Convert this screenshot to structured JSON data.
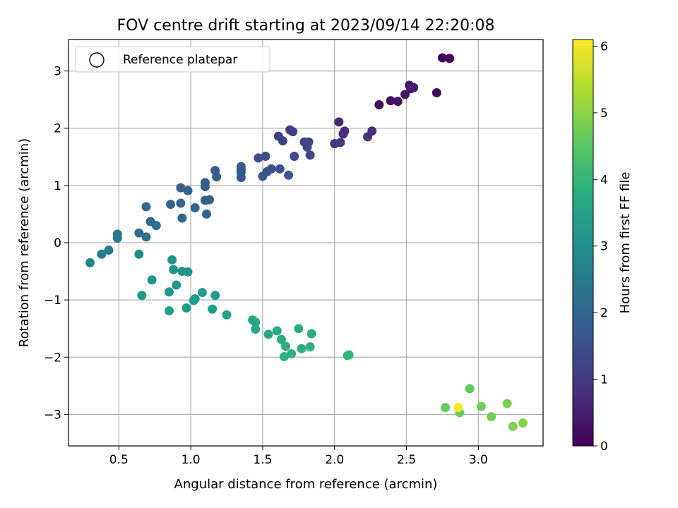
{
  "chart_data": {
    "type": "scatter",
    "title": "FOV centre drift starting at 2023/09/14 22:20:08",
    "xlabel": "Angular distance from reference (arcmin)",
    "ylabel": "Rotation from reference (arcmin)",
    "colorbar_label": "Hours from first FF file",
    "xlim": [
      0.15,
      3.45
    ],
    "ylim": [
      -3.55,
      3.55
    ],
    "clim": [
      0,
      6.1
    ],
    "xticks": [
      0.5,
      1.0,
      1.5,
      2.0,
      2.5,
      3.0
    ],
    "xtick_labels": [
      "0.5",
      "1.0",
      "1.5",
      "2.0",
      "2.5",
      "3.0"
    ],
    "yticks": [
      -3,
      -2,
      -1,
      0,
      1,
      2,
      3
    ],
    "ytick_labels": [
      "−3",
      "−2",
      "−1",
      "0",
      "1",
      "2",
      "3"
    ],
    "cticks": [
      0,
      1,
      2,
      3,
      4,
      5,
      6
    ],
    "ctick_labels": [
      "0",
      "1",
      "2",
      "3",
      "4",
      "5",
      "6"
    ],
    "grid": true,
    "colormap": "viridis",
    "legend": {
      "label": "Reference platepar",
      "position": "upper-left",
      "marker": "hollow-circle"
    },
    "points": [
      {
        "x": 2.75,
        "y": 3.23,
        "h": 0.02
      },
      {
        "x": 2.8,
        "y": 3.22,
        "h": 0.05
      },
      {
        "x": 2.71,
        "y": 2.62,
        "h": 0.1
      },
      {
        "x": 2.31,
        "y": 2.41,
        "h": 0.2
      },
      {
        "x": 2.39,
        "y": 2.48,
        "h": 0.25
      },
      {
        "x": 2.44,
        "y": 2.47,
        "h": 0.3
      },
      {
        "x": 2.49,
        "y": 2.59,
        "h": 0.35
      },
      {
        "x": 2.52,
        "y": 2.75,
        "h": 0.4
      },
      {
        "x": 2.55,
        "y": 2.71,
        "h": 0.45
      },
      {
        "x": 2.53,
        "y": 2.69,
        "h": 0.5
      },
      {
        "x": 2.03,
        "y": 2.11,
        "h": 0.7
      },
      {
        "x": 2.07,
        "y": 1.95,
        "h": 0.75
      },
      {
        "x": 2.06,
        "y": 1.9,
        "h": 0.8
      },
      {
        "x": 2.26,
        "y": 1.95,
        "h": 0.85
      },
      {
        "x": 2.23,
        "y": 1.85,
        "h": 0.9
      },
      {
        "x": 2.0,
        "y": 1.73,
        "h": 1.0
      },
      {
        "x": 2.04,
        "y": 1.75,
        "h": 1.02
      },
      {
        "x": 1.69,
        "y": 1.97,
        "h": 1.05
      },
      {
        "x": 1.71,
        "y": 1.94,
        "h": 1.1
      },
      {
        "x": 1.61,
        "y": 1.86,
        "h": 1.15
      },
      {
        "x": 1.64,
        "y": 1.78,
        "h": 1.2
      },
      {
        "x": 1.79,
        "y": 1.76,
        "h": 1.22
      },
      {
        "x": 1.82,
        "y": 1.76,
        "h": 1.25
      },
      {
        "x": 1.81,
        "y": 1.67,
        "h": 1.27
      },
      {
        "x": 1.83,
        "y": 1.53,
        "h": 1.3
      },
      {
        "x": 1.72,
        "y": 1.51,
        "h": 1.35
      },
      {
        "x": 1.47,
        "y": 1.48,
        "h": 1.4
      },
      {
        "x": 1.52,
        "y": 1.51,
        "h": 1.45
      },
      {
        "x": 1.56,
        "y": 1.29,
        "h": 1.5
      },
      {
        "x": 1.53,
        "y": 1.24,
        "h": 1.52
      },
      {
        "x": 1.62,
        "y": 1.29,
        "h": 1.55
      },
      {
        "x": 1.68,
        "y": 1.18,
        "h": 1.6
      },
      {
        "x": 1.5,
        "y": 1.16,
        "h": 1.62
      },
      {
        "x": 1.35,
        "y": 1.33,
        "h": 1.65
      },
      {
        "x": 1.35,
        "y": 1.28,
        "h": 1.68
      },
      {
        "x": 1.35,
        "y": 1.23,
        "h": 1.7
      },
      {
        "x": 1.35,
        "y": 1.14,
        "h": 1.72
      },
      {
        "x": 1.17,
        "y": 1.26,
        "h": 1.75
      },
      {
        "x": 1.18,
        "y": 1.15,
        "h": 1.78
      },
      {
        "x": 1.1,
        "y": 1.05,
        "h": 1.8
      },
      {
        "x": 1.1,
        "y": 0.98,
        "h": 1.82
      },
      {
        "x": 0.93,
        "y": 0.96,
        "h": 1.85
      },
      {
        "x": 0.98,
        "y": 0.91,
        "h": 1.88
      },
      {
        "x": 1.1,
        "y": 0.74,
        "h": 1.9
      },
      {
        "x": 1.13,
        "y": 0.75,
        "h": 1.92
      },
      {
        "x": 0.86,
        "y": 0.67,
        "h": 1.95
      },
      {
        "x": 0.93,
        "y": 0.69,
        "h": 1.98
      },
      {
        "x": 1.03,
        "y": 0.61,
        "h": 2.0
      },
      {
        "x": 1.11,
        "y": 0.5,
        "h": 2.02
      },
      {
        "x": 0.94,
        "y": 0.43,
        "h": 2.05
      },
      {
        "x": 0.69,
        "y": 0.63,
        "h": 2.1
      },
      {
        "x": 0.72,
        "y": 0.37,
        "h": 2.15
      },
      {
        "x": 0.76,
        "y": 0.3,
        "h": 2.2
      },
      {
        "x": 0.64,
        "y": 0.17,
        "h": 2.25
      },
      {
        "x": 0.69,
        "y": 0.1,
        "h": 2.3
      },
      {
        "x": 0.49,
        "y": 0.15,
        "h": 2.4
      },
      {
        "x": 0.49,
        "y": 0.08,
        "h": 2.45
      },
      {
        "x": 0.43,
        "y": -0.13,
        "h": 2.55
      },
      {
        "x": 0.38,
        "y": -0.2,
        "h": 2.6
      },
      {
        "x": 0.3,
        "y": -0.35,
        "h": 2.7
      },
      {
        "x": 0.64,
        "y": -0.2,
        "h": 2.95
      },
      {
        "x": 0.87,
        "y": -0.3,
        "h": 3.05
      },
      {
        "x": 0.88,
        "y": -0.47,
        "h": 3.1
      },
      {
        "x": 0.94,
        "y": -0.5,
        "h": 3.12
      },
      {
        "x": 0.98,
        "y": -0.51,
        "h": 3.15
      },
      {
        "x": 0.73,
        "y": -0.65,
        "h": 3.2
      },
      {
        "x": 0.9,
        "y": -0.74,
        "h": 3.22
      },
      {
        "x": 0.85,
        "y": -0.86,
        "h": 3.25
      },
      {
        "x": 0.66,
        "y": -0.92,
        "h": 3.28
      },
      {
        "x": 1.08,
        "y": -0.87,
        "h": 3.3
      },
      {
        "x": 1.17,
        "y": -0.92,
        "h": 3.32
      },
      {
        "x": 1.03,
        "y": -0.98,
        "h": 3.35
      },
      {
        "x": 1.02,
        "y": -1.01,
        "h": 3.38
      },
      {
        "x": 0.97,
        "y": -1.14,
        "h": 3.4
      },
      {
        "x": 0.85,
        "y": -1.19,
        "h": 3.42
      },
      {
        "x": 1.15,
        "y": -1.16,
        "h": 3.45
      },
      {
        "x": 1.25,
        "y": -1.26,
        "h": 3.5
      },
      {
        "x": 1.43,
        "y": -1.35,
        "h": 3.6
      },
      {
        "x": 1.45,
        "y": -1.39,
        "h": 3.62
      },
      {
        "x": 1.45,
        "y": -1.51,
        "h": 3.65
      },
      {
        "x": 1.54,
        "y": -1.6,
        "h": 3.7
      },
      {
        "x": 1.6,
        "y": -1.54,
        "h": 3.72
      },
      {
        "x": 1.63,
        "y": -1.69,
        "h": 3.75
      },
      {
        "x": 1.66,
        "y": -1.81,
        "h": 3.78
      },
      {
        "x": 1.75,
        "y": -1.5,
        "h": 3.8
      },
      {
        "x": 1.84,
        "y": -1.59,
        "h": 3.82
      },
      {
        "x": 1.77,
        "y": -1.85,
        "h": 3.85
      },
      {
        "x": 1.83,
        "y": -1.82,
        "h": 3.88
      },
      {
        "x": 1.7,
        "y": -1.94,
        "h": 3.9
      },
      {
        "x": 1.65,
        "y": -1.99,
        "h": 3.92
      },
      {
        "x": 2.1,
        "y": -1.96,
        "h": 3.95
      },
      {
        "x": 2.09,
        "y": -1.97,
        "h": 3.97
      },
      {
        "x": 2.94,
        "y": -2.55,
        "h": 4.6
      },
      {
        "x": 2.77,
        "y": -2.88,
        "h": 4.65
      },
      {
        "x": 2.87,
        "y": -2.97,
        "h": 4.7
      },
      {
        "x": 3.02,
        "y": -2.86,
        "h": 4.75
      },
      {
        "x": 3.09,
        "y": -3.04,
        "h": 4.8
      },
      {
        "x": 3.2,
        "y": -2.81,
        "h": 4.85
      },
      {
        "x": 3.24,
        "y": -3.21,
        "h": 4.9
      },
      {
        "x": 3.31,
        "y": -3.15,
        "h": 4.95
      },
      {
        "x": 2.86,
        "y": -2.88,
        "h": 6.05
      }
    ]
  }
}
